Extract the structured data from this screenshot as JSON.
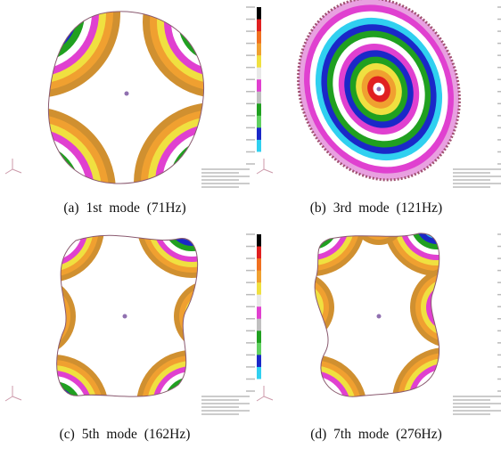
{
  "figure": {
    "panels": [
      {
        "caption": "(a) 1st mode (71Hz)"
      },
      {
        "caption": "(b) 3rd mode (121Hz)"
      },
      {
        "caption": "(c) 5th mode (162Hz)"
      },
      {
        "caption": "(d) 7th mode (276Hz)"
      }
    ]
  }
}
